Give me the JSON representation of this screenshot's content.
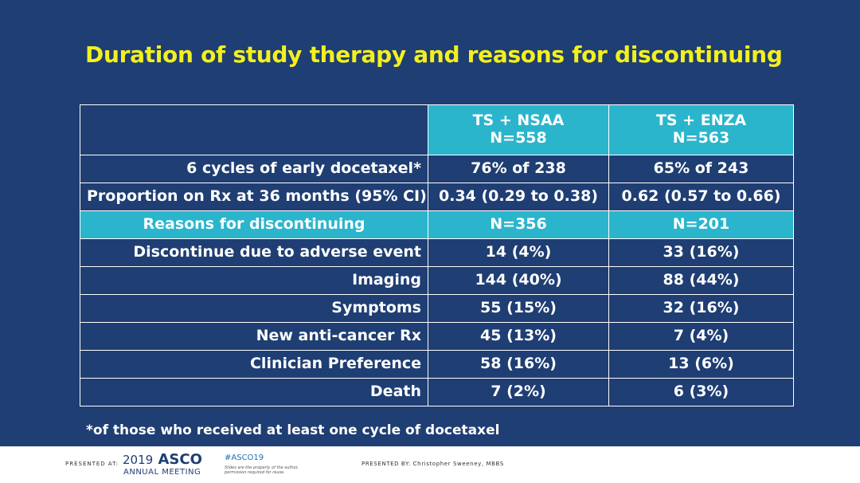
{
  "title": "Duration of study therapy and reasons for discontinuing",
  "table": {
    "header": {
      "col1_line1": "TS + NSAA",
      "col1_line2": "N=558",
      "col2_line1": "TS + ENZA",
      "col2_line2": "N=563"
    },
    "rows": [
      {
        "label": "6 cycles of early docetaxel*",
        "v1": "76% of 238",
        "v2": "65% of 243"
      },
      {
        "label": "Proportion on Rx at 36 months (95% CI)",
        "v1": "0.34 (0.29 to 0.38)",
        "v2": "0.62 (0.57 to 0.66)"
      },
      {
        "label": "Reasons for discontinuing",
        "v1": "N=356",
        "v2": "N=201"
      },
      {
        "label": "Discontinue due to adverse event",
        "v1": "14 (4%)",
        "v2": "33 (16%)"
      },
      {
        "label": "Imaging",
        "v1": "144 (40%)",
        "v2": "88 (44%)"
      },
      {
        "label": "Symptoms",
        "v1": "55 (15%)",
        "v2": "32 (16%)"
      },
      {
        "label": "New anti-cancer Rx",
        "v1": "45 (13%)",
        "v2": "7 (4%)"
      },
      {
        "label": "Clinician Preference",
        "v1": "58 (16%)",
        "v2": "13 (6%)"
      },
      {
        "label": "Death",
        "v1": "7 (2%)",
        "v2": "6 (3%)"
      }
    ]
  },
  "footnote": "*of those who received at least one cycle of docetaxel",
  "footer": {
    "presented_at": "PRESENTED AT:",
    "year": "2019",
    "asco": "ASCO",
    "meeting": "ANNUAL MEETING",
    "hashtag": "#ASCO19",
    "disclaimer": "Slides are the property of the author, permission required for reuse.",
    "presented_by": "PRESENTED BY: Christopher Sweeney, MBBS"
  },
  "colors": {
    "background": "#1f3e73",
    "teal": "#2bb5cc",
    "yellow": "#f3f01e",
    "white": "#ffffff"
  }
}
